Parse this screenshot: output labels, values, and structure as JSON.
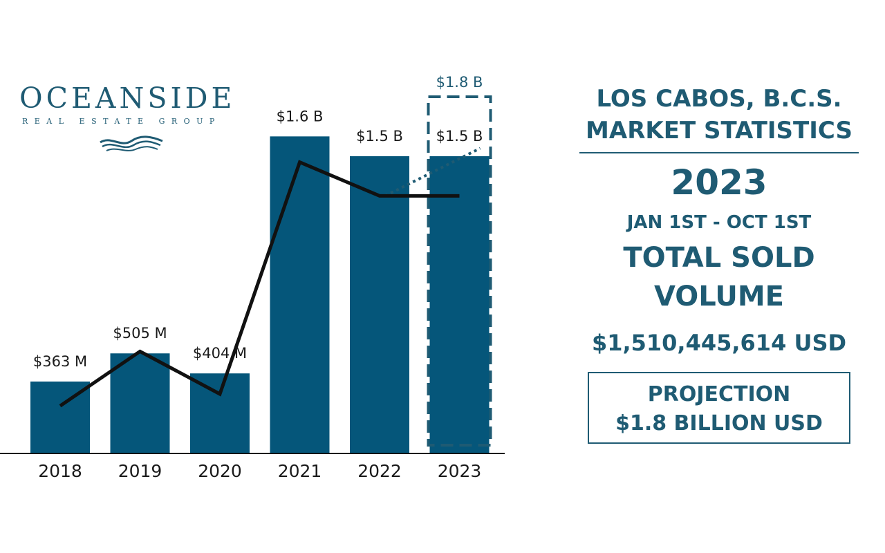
{
  "logo": {
    "name": "OCEANSIDE",
    "tagline": "REAL ESTATE GROUP"
  },
  "colors": {
    "bar": "#05567a",
    "trend": "#111111",
    "text": "#1f5b73",
    "projection": "#1f5b73"
  },
  "chart_data": {
    "type": "bar",
    "title": "",
    "xlabel": "",
    "ylabel": "",
    "categories": [
      "2018",
      "2019",
      "2020",
      "2021",
      "2022",
      "2023"
    ],
    "values": [
      363,
      505,
      404,
      1600,
      1500,
      1500
    ],
    "value_labels": [
      "$363 M",
      "$505 M",
      "$404 M",
      "$1.6 B",
      "$1.5 B",
      "$1.5 B"
    ],
    "trend_line": [
      240,
      515,
      300,
      1470,
      1300,
      1300
    ],
    "units": "USD millions",
    "ylim": [
      0,
      1800
    ],
    "projection": {
      "category": "2023",
      "value": 1800,
      "label": "$1.8 B"
    }
  },
  "panel": {
    "location": "LOS CABOS, B.C.S.",
    "subtitle": "MARKET STATISTICS",
    "year": "2023",
    "date_range": "JAN 1ST - OCT 1ST",
    "metric_line1": "TOTAL SOLD",
    "metric_line2": "VOLUME",
    "amount": "$1,510,445,614 USD",
    "projection_label": "PROJECTION",
    "projection_value": "$1.8  BILLION USD"
  }
}
